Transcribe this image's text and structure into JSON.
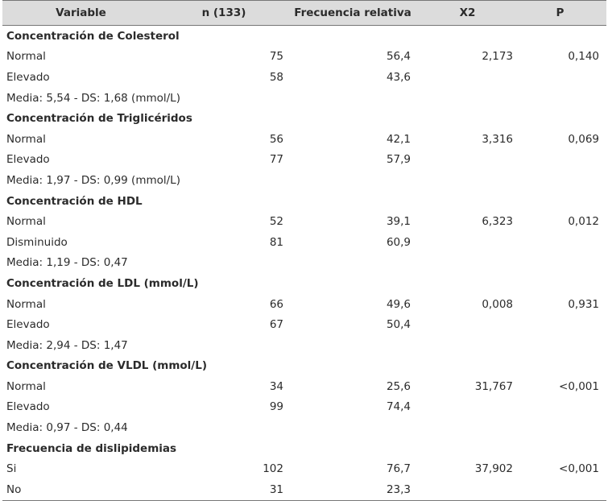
{
  "headers": [
    "Variable",
    "n (133)",
    "Frecuencia relativa",
    "X2",
    "P"
  ],
  "sections": [
    {
      "title": "Concentración de Colesterol",
      "rows": [
        {
          "label": "Normal",
          "n": "75",
          "freq": "56,4",
          "x2": "2,173",
          "p": "0,140"
        },
        {
          "label": "Elevado",
          "n": "58",
          "freq": "43,6",
          "x2": "",
          "p": ""
        }
      ],
      "note": "Media: 5,54 - DS: 1,68 (mmol/L)"
    },
    {
      "title": "Concentración de Triglicéridos",
      "rows": [
        {
          "label": "Normal",
          "n": "56",
          "freq": "42,1",
          "x2": "3,316",
          "p": "0,069"
        },
        {
          "label": "Elevado",
          "n": "77",
          "freq": "57,9",
          "x2": "",
          "p": ""
        }
      ],
      "note": "Media: 1,97 - DS: 0,99 (mmol/L)"
    },
    {
      "title": "Concentración de HDL",
      "rows": [
        {
          "label": "Normal",
          "n": "52",
          "freq": "39,1",
          "x2": "6,323",
          "p": "0,012"
        },
        {
          "label": "Disminuido",
          "n": "81",
          "freq": "60,9",
          "x2": "",
          "p": ""
        }
      ],
      "note": "Media: 1,19 - DS: 0,47"
    },
    {
      "title": "Concentración de LDL (mmol/L)",
      "rows": [
        {
          "label": "Normal",
          "n": "66",
          "freq": "49,6",
          "x2": "0,008",
          "p": "0,931"
        },
        {
          "label": "Elevado",
          "n": "67",
          "freq": "50,4",
          "x2": "",
          "p": ""
        }
      ],
      "note": "Media: 2,94 - DS: 1,47"
    },
    {
      "title": "Concentración de VLDL (mmol/L)",
      "rows": [
        {
          "label": "Normal",
          "n": "34",
          "freq": "25,6",
          "x2": "31,767",
          "p": "<0,001"
        },
        {
          "label": "Elevado",
          "n": "99",
          "freq": "74,4",
          "x2": "",
          "p": ""
        }
      ],
      "note": "Media: 0,97 - DS: 0,44"
    },
    {
      "title": "Frecuencia de dislipidemias",
      "rows": [
        {
          "label": "Si",
          "n": "102",
          "freq": "76,7",
          "x2": "37,902",
          "p": "<0,001"
        },
        {
          "label": "No",
          "n": "31",
          "freq": "23,3",
          "x2": "",
          "p": ""
        }
      ],
      "note": ""
    }
  ]
}
